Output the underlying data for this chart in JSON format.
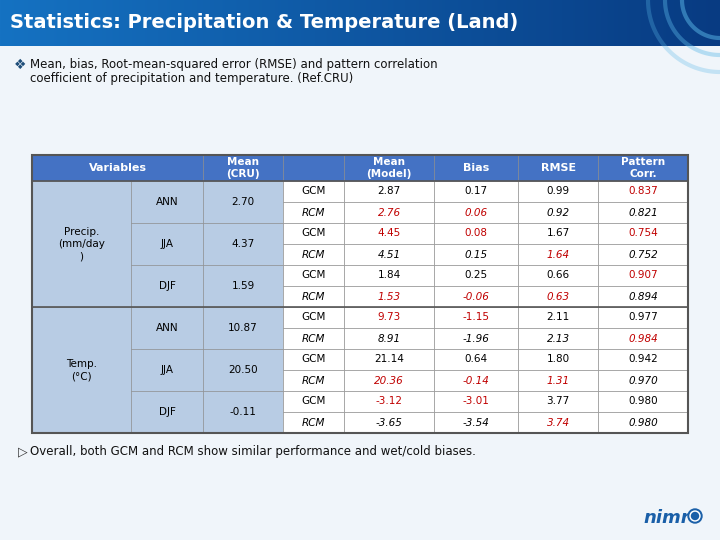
{
  "title": "Statistics: Precipitation & Temperature (Land)",
  "title_bg_left": "#1A6FBF",
  "title_bg_right": "#0050A0",
  "title_color": "#FFFFFF",
  "bullet_text_line1": "Mean, bias, Root-mean-squared error (RMSE) and pattern correlation",
  "bullet_text_line2": "coefficient of precipitation and temperature. (Ref.CRU)",
  "footer_text": "Overall, both GCM and RCM show similar performance and wet/cold biases.",
  "header_bg": "#4472C4",
  "header_color": "#FFFFFF",
  "row_bg_white": "#FFFFFF",
  "row_bg_light": "#DCE6F1",
  "group_col_bg": "#B8CCE4",
  "red_color": "#C00000",
  "black_color": "#000000",
  "rows": [
    {
      "group": "Precip.\n(mm/day\n)",
      "season": "ANN",
      "mean_cru": "2.70",
      "model": "GCM",
      "mean_model": "2.87",
      "bias": "0.17",
      "rmse": "0.99",
      "corr": "0.837",
      "italic": false,
      "mm_red": false,
      "b_red": false,
      "r_red": false,
      "c_red": true,
      "row_pair": 0
    },
    {
      "group": "",
      "season": "",
      "mean_cru": "",
      "model": "RCM",
      "mean_model": "2.76",
      "bias": "0.06",
      "rmse": "0.92",
      "corr": "0.821",
      "italic": true,
      "mm_red": true,
      "b_red": true,
      "r_red": false,
      "c_red": false,
      "row_pair": 0
    },
    {
      "group": "",
      "season": "JJA",
      "mean_cru": "4.37",
      "model": "GCM",
      "mean_model": "4.45",
      "bias": "0.08",
      "rmse": "1.67",
      "corr": "0.754",
      "italic": false,
      "mm_red": true,
      "b_red": true,
      "r_red": false,
      "c_red": true,
      "row_pair": 1
    },
    {
      "group": "",
      "season": "",
      "mean_cru": "",
      "model": "RCM",
      "mean_model": "4.51",
      "bias": "0.15",
      "rmse": "1.64",
      "corr": "0.752",
      "italic": true,
      "mm_red": false,
      "b_red": false,
      "r_red": true,
      "c_red": false,
      "row_pair": 1
    },
    {
      "group": "",
      "season": "DJF",
      "mean_cru": "1.59",
      "model": "GCM",
      "mean_model": "1.84",
      "bias": "0.25",
      "rmse": "0.66",
      "corr": "0.907",
      "italic": false,
      "mm_red": false,
      "b_red": false,
      "r_red": false,
      "c_red": true,
      "row_pair": 2
    },
    {
      "group": "",
      "season": "",
      "mean_cru": "",
      "model": "RCM",
      "mean_model": "1.53",
      "bias": "-0.06",
      "rmse": "0.63",
      "corr": "0.894",
      "italic": true,
      "mm_red": true,
      "b_red": true,
      "r_red": true,
      "c_red": false,
      "row_pair": 2
    },
    {
      "group": "Temp.\n(°C)",
      "season": "ANN",
      "mean_cru": "10.87",
      "model": "GCM",
      "mean_model": "9.73",
      "bias": "-1.15",
      "rmse": "2.11",
      "corr": "0.977",
      "italic": false,
      "mm_red": true,
      "b_red": true,
      "r_red": false,
      "c_red": false,
      "row_pair": 3
    },
    {
      "group": "",
      "season": "",
      "mean_cru": "",
      "model": "RCM",
      "mean_model": "8.91",
      "bias": "-1.96",
      "rmse": "2.13",
      "corr": "0.984",
      "italic": true,
      "mm_red": false,
      "b_red": false,
      "r_red": false,
      "c_red": true,
      "row_pair": 3
    },
    {
      "group": "",
      "season": "JJA",
      "mean_cru": "20.50",
      "model": "GCM",
      "mean_model": "21.14",
      "bias": "0.64",
      "rmse": "1.80",
      "corr": "0.942",
      "italic": false,
      "mm_red": false,
      "b_red": false,
      "r_red": false,
      "c_red": false,
      "row_pair": 4
    },
    {
      "group": "",
      "season": "",
      "mean_cru": "",
      "model": "RCM",
      "mean_model": "20.36",
      "bias": "-0.14",
      "rmse": "1.31",
      "corr": "0.970",
      "italic": true,
      "mm_red": true,
      "b_red": true,
      "r_red": true,
      "c_red": false,
      "row_pair": 4
    },
    {
      "group": "",
      "season": "DJF",
      "mean_cru": "-0.11",
      "model": "GCM",
      "mean_model": "-3.12",
      "bias": "-3.01",
      "rmse": "3.77",
      "corr": "0.980",
      "italic": false,
      "mm_red": true,
      "b_red": true,
      "r_red": false,
      "c_red": false,
      "row_pair": 5
    },
    {
      "group": "",
      "season": "",
      "mean_cru": "",
      "model": "RCM",
      "mean_model": "-3.65",
      "bias": "-3.54",
      "rmse": "3.74",
      "corr": "0.980",
      "italic": true,
      "mm_red": false,
      "b_red": false,
      "r_red": true,
      "c_red": false,
      "row_pair": 5
    }
  ]
}
